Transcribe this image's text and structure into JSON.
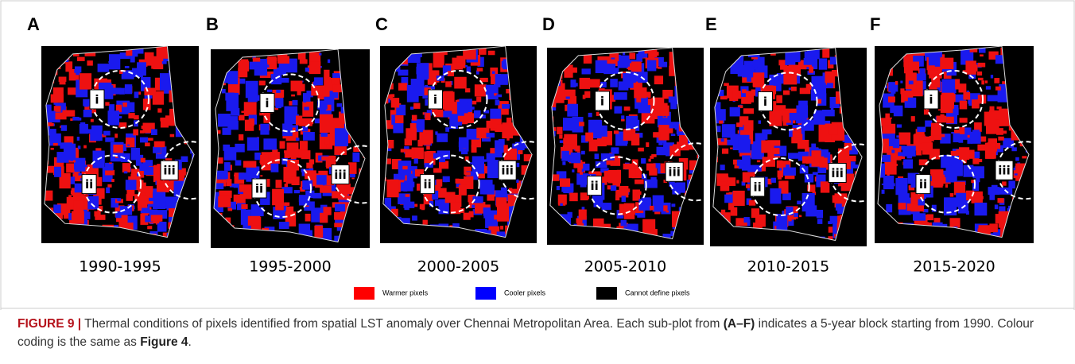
{
  "panels": [
    {
      "letter": "A",
      "period": "1990-1995"
    },
    {
      "letter": "B",
      "period": "1995-2000"
    },
    {
      "letter": "C",
      "period": "2000-2005"
    },
    {
      "letter": "D",
      "period": "2005-2010"
    },
    {
      "letter": "E",
      "period": "2010-2015"
    },
    {
      "letter": "F",
      "period": "2015-2020"
    }
  ],
  "zones": [
    "i",
    "ii",
    "iii"
  ],
  "legend": [
    {
      "label": "Warmer pixels",
      "color": "#ff0000"
    },
    {
      "label": "Cooler pixels",
      "color": "#0000ff"
    },
    {
      "label": "Cannot define pixels",
      "color": "#000000"
    }
  ],
  "caption": {
    "figure_label": "FIGURE 9 |",
    "text_1": "Thermal conditions of pixels identified from spatial LST anomaly over Chennai Metropolitan Area. Each sub-plot from",
    "range_ref": "(A–F)",
    "text_2": "indicates a 5-year block starting from 1990. Colour coding is the same as",
    "figure_ref": "Figure 4",
    "end": "."
  }
}
